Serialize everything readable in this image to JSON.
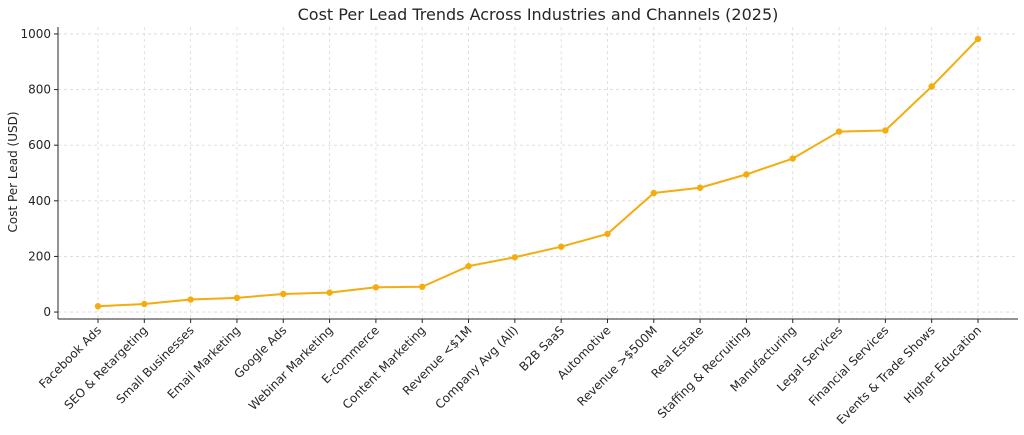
{
  "chart_data": {
    "type": "line",
    "title": "Cost Per Lead Trends Across Industries and Channels (2025)",
    "xlabel": "",
    "ylabel": "Cost Per Lead (USD)",
    "ylim": [
      -25,
      1025
    ],
    "yticks": [
      0,
      200,
      400,
      600,
      800,
      1000
    ],
    "grid": true,
    "color": "#f5ac0f",
    "categories": [
      "Facebook Ads",
      "SEO & Retargeting",
      "Small Businesses",
      "Email Marketing",
      "Google Ads",
      "Webinar Marketing",
      "E-commerce",
      "Content Marketing",
      "Revenue <$1M",
      "Company Avg (All)",
      "B2B SaaS",
      "Automotive",
      "Revenue >$500M",
      "Real Estate",
      "Staffing & Recruiting",
      "Manufacturing",
      "Legal Services",
      "Financial Services",
      "Events & Trade Shows",
      "Higher Education"
    ],
    "values": [
      21,
      29,
      45,
      51,
      65,
      70,
      89,
      91,
      165,
      197,
      235,
      281,
      428,
      447,
      495,
      552,
      649,
      653,
      811,
      982
    ]
  }
}
